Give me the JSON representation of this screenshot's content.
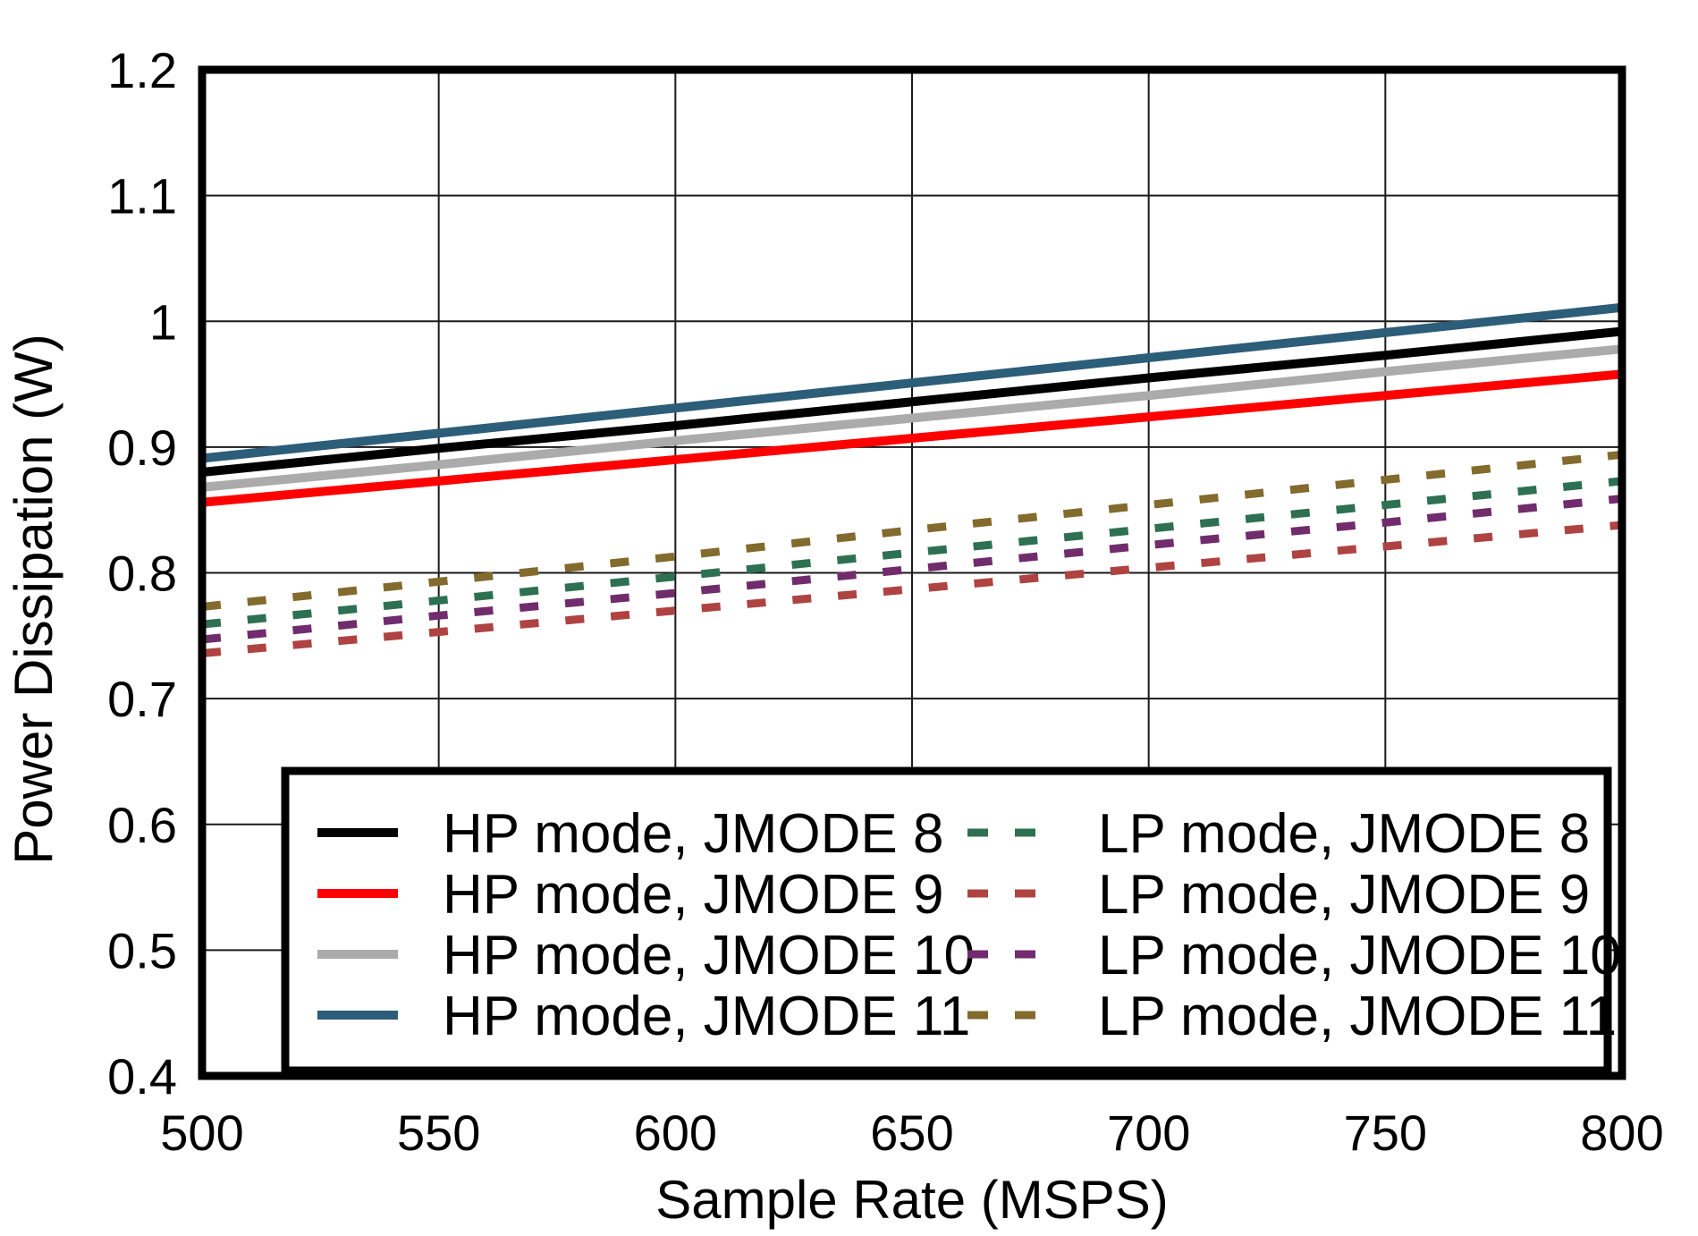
{
  "chart_data": {
    "type": "line",
    "title": "",
    "xlabel": "Sample Rate (MSPS)",
    "ylabel": "Power Dissipation (W)",
    "x_range": [
      500,
      800
    ],
    "y_range": [
      0.4,
      1.2
    ],
    "x_ticks": [
      500,
      550,
      600,
      650,
      700,
      750,
      800
    ],
    "x_tick_labels": [
      "500",
      "550",
      "600",
      "650",
      "700",
      "750",
      "800"
    ],
    "y_ticks": [
      0.4,
      0.5,
      0.6,
      0.7,
      0.8,
      0.9,
      1.0,
      1.1,
      1.2
    ],
    "y_tick_labels": [
      "0.4",
      "0.5",
      "0.6",
      "0.7",
      "0.8",
      "0.9",
      "1",
      "1.1",
      "1.2"
    ],
    "grid": true,
    "legend": {
      "position": "bottom-inside",
      "columns": 2,
      "border": true
    },
    "x": [
      500,
      550,
      600,
      650,
      700,
      750,
      800
    ],
    "series": [
      {
        "name": "HP mode, JMODE 8",
        "color": "#000000",
        "line_style": "solid",
        "values": [
          0.88,
          0.899,
          0.917,
          0.936,
          0.955,
          0.973,
          0.992
        ]
      },
      {
        "name": "HP mode, JMODE 9",
        "color": "#FF0000",
        "line_style": "solid",
        "values": [
          0.856,
          0.873,
          0.89,
          0.907,
          0.924,
          0.941,
          0.958
        ]
      },
      {
        "name": "HP mode, JMODE 10",
        "color": "#ABABAB",
        "line_style": "solid",
        "values": [
          0.868,
          0.886,
          0.905,
          0.923,
          0.941,
          0.96,
          0.978
        ]
      },
      {
        "name": "HP mode, JMODE 11",
        "color": "#2C5D79",
        "line_style": "solid",
        "values": [
          0.891,
          0.911,
          0.931,
          0.951,
          0.971,
          0.991,
          1.011
        ]
      },
      {
        "name": "LP mode, JMODE 8",
        "color": "#2E7052",
        "line_style": "dashed",
        "values": [
          0.759,
          0.778,
          0.797,
          0.816,
          0.835,
          0.854,
          0.873
        ]
      },
      {
        "name": "LP mode, JMODE 9",
        "color": "#AE4342",
        "line_style": "dashed",
        "values": [
          0.736,
          0.753,
          0.77,
          0.787,
          0.804,
          0.821,
          0.838
        ]
      },
      {
        "name": "LP mode, JMODE 10",
        "color": "#702C6C",
        "line_style": "dashed",
        "values": [
          0.747,
          0.766,
          0.784,
          0.803,
          0.822,
          0.84,
          0.859
        ]
      },
      {
        "name": "LP mode, JMODE 11",
        "color": "#836A2D",
        "line_style": "dashed",
        "values": [
          0.773,
          0.793,
          0.813,
          0.834,
          0.854,
          0.874,
          0.894
        ]
      }
    ]
  }
}
